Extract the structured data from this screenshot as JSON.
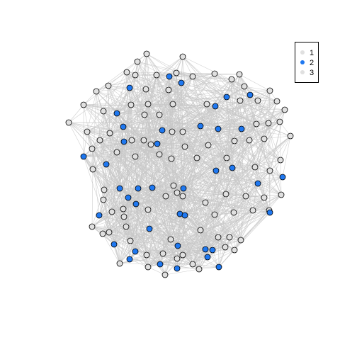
{
  "graph": {
    "type": "network",
    "group_colors": {
      "1": "#e0e0e0",
      "2": "#1f78f0",
      "3": "#e0e0e0"
    },
    "edge_color": "#c8c8c8",
    "legend": [
      {
        "label": "1",
        "color": "#e0e0e0"
      },
      {
        "label": "2",
        "color": "#1f78f0"
      },
      {
        "label": "3",
        "color": "#e0e0e0"
      }
    ],
    "nodes": [
      [
        207,
        76,
        1
      ],
      [
        258,
        80,
        1
      ],
      [
        194,
        87,
        1
      ],
      [
        179,
        102,
        1
      ],
      [
        191,
        106,
        1
      ],
      [
        221,
        106,
        1
      ],
      [
        239,
        108,
        2
      ],
      [
        249,
        103,
        1
      ],
      [
        256,
        117,
        2
      ],
      [
        272,
        108,
        1
      ],
      [
        303,
        104,
        1
      ],
      [
        338,
        105,
        1
      ],
      [
        327,
        112,
        1
      ],
      [
        153,
        121,
        1
      ],
      [
        183,
        124,
        2
      ],
      [
        206,
        126,
        1
      ],
      [
        238,
        127,
        1
      ],
      [
        136,
        129,
        1
      ],
      [
        345,
        122,
        1
      ],
      [
        381,
        128,
        1
      ],
      [
        353,
        134,
        2
      ],
      [
        320,
        137,
        2
      ],
      [
        339,
        142,
        1
      ],
      [
        364,
        142,
        1
      ],
      [
        118,
        148,
        1
      ],
      [
        146,
        157,
        1
      ],
      [
        165,
        160,
        2
      ],
      [
        185,
        148,
        1
      ],
      [
        209,
        147,
        1
      ],
      [
        244,
        147,
        1
      ],
      [
        292,
        147,
        1
      ],
      [
        304,
        150,
        2
      ],
      [
        391,
        143,
        1
      ],
      [
        402,
        155,
        1
      ],
      [
        204,
        162,
        1
      ],
      [
        225,
        162,
        1
      ],
      [
        97,
        173,
        1
      ],
      [
        174,
        179,
        2
      ],
      [
        229,
        184,
        2
      ],
      [
        243,
        186,
        1
      ],
      [
        283,
        178,
        2
      ],
      [
        308,
        182,
        2
      ],
      [
        341,
        182,
        2
      ],
      [
        362,
        175,
        1
      ],
      [
        379,
        174,
        1
      ],
      [
        395,
        172,
        1
      ],
      [
        123,
        186,
        1
      ],
      [
        155,
        188,
        1
      ],
      [
        186,
        198,
        1
      ],
      [
        203,
        198,
        1
      ],
      [
        222,
        203,
        2
      ],
      [
        258,
        186,
        1
      ],
      [
        175,
        200,
        2
      ],
      [
        141,
        198,
        1
      ],
      [
        410,
        192,
        1
      ],
      [
        331,
        199,
        1
      ],
      [
        352,
        198,
        1
      ],
      [
        373,
        196,
        1
      ],
      [
        294,
        205,
        1
      ],
      [
        261,
        207,
        1
      ],
      [
        213,
        204,
        1
      ],
      [
        118,
        221,
        2
      ],
      [
        130,
        210,
        1
      ],
      [
        165,
        215,
        1
      ],
      [
        191,
        221,
        1
      ],
      [
        225,
        218,
        1
      ],
      [
        278,
        223,
        1
      ],
      [
        150,
        232,
        2
      ],
      [
        242,
        224,
        1
      ],
      [
        320,
        223,
        1
      ],
      [
        396,
        226,
        1
      ],
      [
        360,
        236,
        1
      ],
      [
        381,
        241,
        1
      ],
      [
        131,
        239,
        1
      ],
      [
        305,
        241,
        2
      ],
      [
        328,
        237,
        2
      ],
      [
        399,
        250,
        2
      ],
      [
        147,
        268,
        1
      ],
      [
        169,
        266,
        2
      ],
      [
        195,
        266,
        2
      ],
      [
        215,
        265,
        2
      ],
      [
        245,
        262,
        1
      ],
      [
        259,
        266,
        2
      ],
      [
        250,
        272,
        1
      ],
      [
        234,
        277,
        1
      ],
      [
        258,
        277,
        1
      ],
      [
        319,
        274,
        1
      ],
      [
        347,
        277,
        1
      ],
      [
        364,
        259,
        2
      ],
      [
        373,
        279,
        1
      ],
      [
        397,
        275,
        1
      ],
      [
        357,
        297,
        1
      ],
      [
        380,
        297,
        1
      ],
      [
        381,
        300,
        2
      ],
      [
        181,
        279,
        2
      ],
      [
        146,
        282,
        1
      ],
      [
        174,
        295,
        1
      ],
      [
        192,
        288,
        2
      ],
      [
        209,
        296,
        1
      ],
      [
        290,
        286,
        1
      ],
      [
        140,
        304,
        2
      ],
      [
        175,
        306,
        1
      ],
      [
        158,
        299,
        1
      ],
      [
        254,
        302,
        2
      ],
      [
        261,
        304,
        2
      ],
      [
        303,
        303,
        1
      ],
      [
        330,
        300,
        1
      ],
      [
        130,
        320,
        1
      ],
      [
        211,
        323,
        2
      ],
      [
        178,
        320,
        1
      ],
      [
        283,
        325,
        1
      ],
      [
        145,
        330,
        1
      ],
      [
        154,
        328,
        1
      ],
      [
        241,
        338,
        1
      ],
      [
        308,
        335,
        1
      ],
      [
        324,
        335,
        1
      ],
      [
        161,
        345,
        2
      ],
      [
        184,
        340,
        1
      ],
      [
        251,
        347,
        2
      ],
      [
        340,
        339,
        1
      ],
      [
        318,
        349,
        1
      ],
      [
        290,
        352,
        2
      ],
      [
        300,
        353,
        2
      ],
      [
        331,
        353,
        1
      ],
      [
        191,
        355,
        2
      ],
      [
        207,
        360,
        1
      ],
      [
        230,
        358,
        1
      ],
      [
        258,
        360,
        1
      ],
      [
        293,
        363,
        2
      ],
      [
        183,
        366,
        2
      ],
      [
        250,
        365,
        1
      ],
      [
        169,
        372,
        1
      ],
      [
        226,
        373,
        2
      ],
      [
        272,
        373,
        1
      ],
      [
        309,
        377,
        2
      ],
      [
        209,
        377,
        1
      ],
      [
        250,
        379,
        2
      ],
      [
        281,
        380,
        1
      ],
      [
        233,
        388,
        1
      ]
    ]
  }
}
